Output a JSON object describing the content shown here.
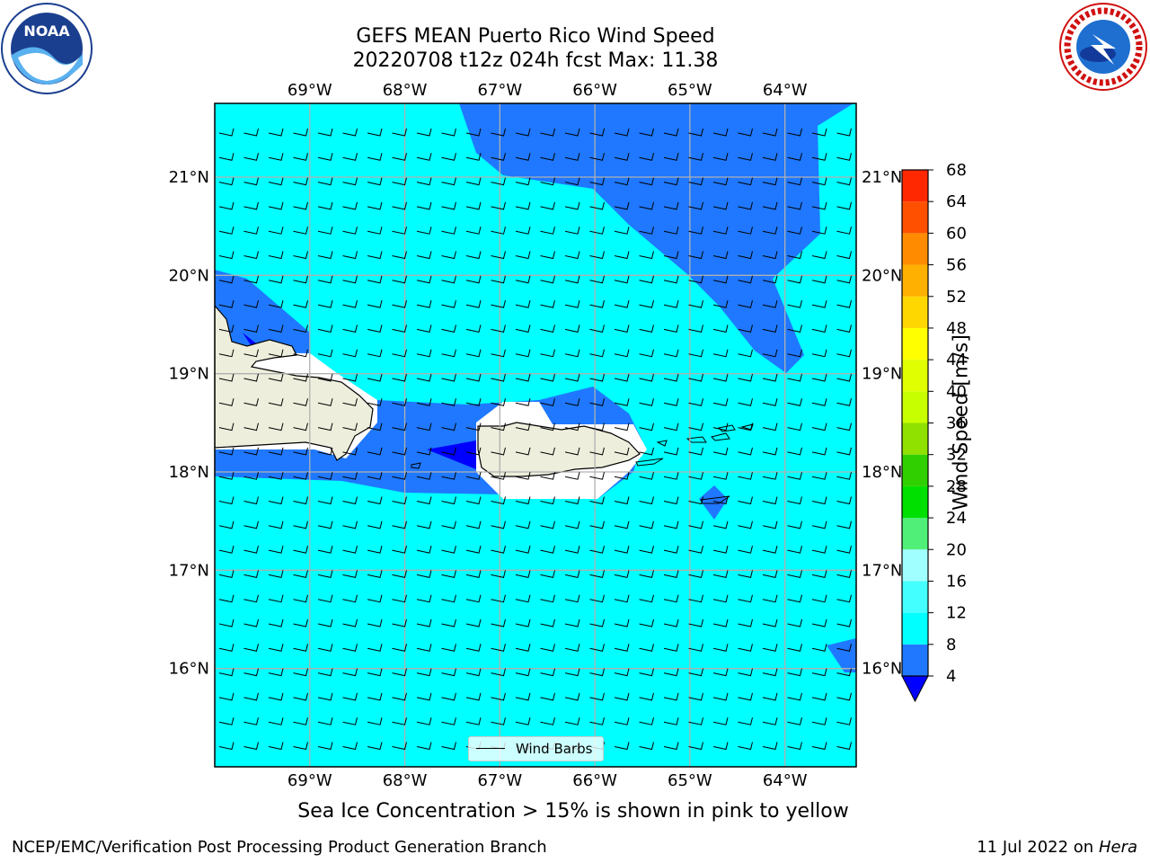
{
  "title_line1": "GEFS MEAN Puerto Rico Wind Speed",
  "title_line2": "20220708 t12z 024h fcst   Max: 11.38",
  "subtitle": "Sea Ice Concentration > 15% is shown in pink to yellow",
  "footer_left": "NCEP/EMC/Verification Post Processing Product Generation Branch",
  "footer_date": "11 Jul 2022 on ",
  "footer_host": "Hera",
  "legend_label": "Wind Barbs",
  "logos": {
    "left": "noaa-logo",
    "right": "nws-logo"
  },
  "map": {
    "lon_ticks": [
      "69°W",
      "68°W",
      "67°W",
      "66°W",
      "65°W",
      "64°W"
    ],
    "lat_ticks": [
      "21°N",
      "20°N",
      "19°N",
      "18°N",
      "17°N",
      "16°N"
    ],
    "lon_range": [
      -70.0,
      -63.25
    ],
    "lat_range": [
      15.0,
      21.75
    ],
    "land_color": "#eeeedd",
    "grid_color": "#b0b0b0"
  },
  "colorbar": {
    "label": "Wind Speed [m/s]",
    "ticks": [
      "4",
      "8",
      "12",
      "16",
      "20",
      "24",
      "28",
      "32",
      "36",
      "40",
      "44",
      "48",
      "52",
      "56",
      "60",
      "64",
      "68"
    ],
    "colors": [
      "#1f78ff",
      "#00ffff",
      "#44ffff",
      "#a0ffff",
      "#50f078",
      "#00e000",
      "#30d000",
      "#90e000",
      "#c8ff00",
      "#e0ff00",
      "#ffff00",
      "#ffd700",
      "#ffb000",
      "#ff8c00",
      "#ff5000",
      "#ff2800",
      "#ff0000"
    ],
    "under_color": "#0000ff"
  }
}
